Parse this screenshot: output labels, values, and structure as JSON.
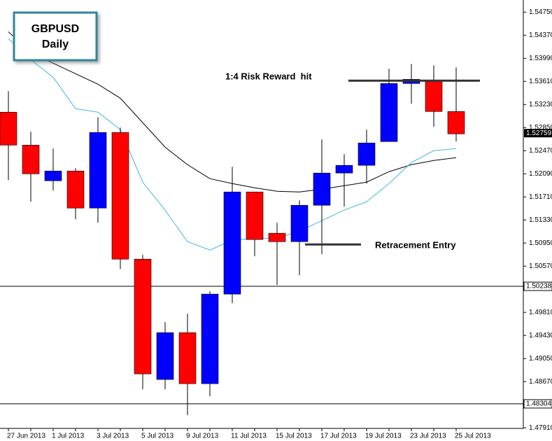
{
  "chart_data": {
    "type": "candlestick",
    "title": "GBPUSD",
    "subtitle": "Daily",
    "categories": [
      "27 Jun 2013",
      null,
      "1 Jul 2013",
      null,
      "3 Jul 2013",
      null,
      "5 Jul 2013",
      null,
      "9 Jul 2013",
      null,
      "11 Jul 2013",
      null,
      "15 Jul 2013",
      null,
      "17 Jul 2013",
      null,
      "19 Jul 2013",
      null,
      "23 Jul 2013",
      null,
      "25 Jul 2013"
    ],
    "open": [
      1.53104,
      1.52562,
      1.51975,
      1.52136,
      1.51526,
      1.5277,
      1.50685,
      1.48705,
      1.49476,
      1.48636,
      1.5011,
      1.51791,
      1.51112,
      1.50973,
      1.51572,
      1.52102,
      1.52229,
      1.5262,
      1.53576,
      1.53633,
      1.53115
    ],
    "high": [
      1.53449,
      1.52781,
      1.52505,
      1.52182,
      1.53023,
      1.5285,
      1.50755,
      1.49649,
      1.49787,
      1.50156,
      1.52205,
      1.51791,
      1.51284,
      1.51653,
      1.52655,
      1.52413,
      1.52816,
      1.53818,
      1.53898,
      1.53875,
      1.53841
    ],
    "low": [
      1.51987,
      1.5163,
      1.51814,
      1.51342,
      1.51284,
      1.50524,
      1.48544,
      1.48544,
      1.48118,
      1.48429,
      1.4996,
      1.50732,
      1.50259,
      1.50421,
      1.50766,
      1.51549,
      1.51929,
      1.5262,
      1.53242,
      1.52862,
      1.5262
    ],
    "close": [
      1.52562,
      1.5209,
      1.52136,
      1.51526,
      1.5277,
      1.50685,
      1.48797,
      1.49476,
      1.48636,
      1.5011,
      1.51791,
      1.51008,
      1.50973,
      1.51572,
      1.52102,
      1.52229,
      1.52597,
      1.53576,
      1.53645,
      1.53115,
      1.52747
    ],
    "bull_color": "#0000ff",
    "bear_color": "#ff0000",
    "moving_averages": [
      {
        "color": "#000000",
        "values": [
          1.54428,
          1.54082,
          1.5391,
          1.53737,
          1.53564,
          1.53334,
          1.52931,
          1.52528,
          1.5224,
          1.5201,
          1.51929,
          1.5186,
          1.51802,
          1.51791,
          1.51837,
          1.51895,
          1.51952,
          1.52125,
          1.5224,
          1.52309,
          1.52355
        ]
      },
      {
        "color": "#3fb6e6",
        "values": [
          1.54313,
          1.53967,
          1.53679,
          1.53161,
          1.53104,
          1.52816,
          1.51952,
          1.51492,
          1.50973,
          1.50835,
          1.50996,
          1.51031,
          1.51031,
          1.51146,
          1.51319,
          1.51492,
          1.5163,
          1.51929,
          1.52275,
          1.5247,
          1.52505
        ]
      }
    ],
    "ylim": [
      1.479,
      1.5495
    ],
    "yticks": [
      {
        "value": 1.5475,
        "label": "1.54750"
      },
      {
        "value": 1.5437,
        "label": "1.54370"
      },
      {
        "value": 1.5399,
        "label": "1.53990"
      },
      {
        "value": 1.5361,
        "label": "1.53610"
      },
      {
        "value": 1.5323,
        "label": "1.53230"
      },
      {
        "value": 1.5285,
        "label": "1.52850"
      },
      {
        "value": 1.5247,
        "label": "1.52470"
      },
      {
        "value": 1.5209,
        "label": "1.52090"
      },
      {
        "value": 1.5171,
        "label": "1.51710"
      },
      {
        "value": 1.5133,
        "label": "1.51330"
      },
      {
        "value": 1.5095,
        "label": "1.50950"
      },
      {
        "value": 1.5057,
        "label": "1.50570"
      },
      {
        "value": 1.4981,
        "label": "1.49810"
      },
      {
        "value": 1.4943,
        "label": "1.49430"
      },
      {
        "value": 1.4905,
        "label": "1.49050"
      },
      {
        "value": 1.4867,
        "label": "1.48670"
      },
      {
        "value": 1.4791,
        "label": "1.47910"
      }
    ],
    "current_price": {
      "value": 1.52759,
      "label": "1.52759"
    },
    "price_lines": [
      {
        "value": 1.50238,
        "label": "1.50238"
      },
      {
        "value": 1.48304,
        "label": "1.48304"
      }
    ],
    "annotations": [
      {
        "text": "1:4 Risk Reward  hit",
        "value": 1.53622
      },
      {
        "text": "Retracement Entry",
        "value": 1.50927
      }
    ]
  }
}
